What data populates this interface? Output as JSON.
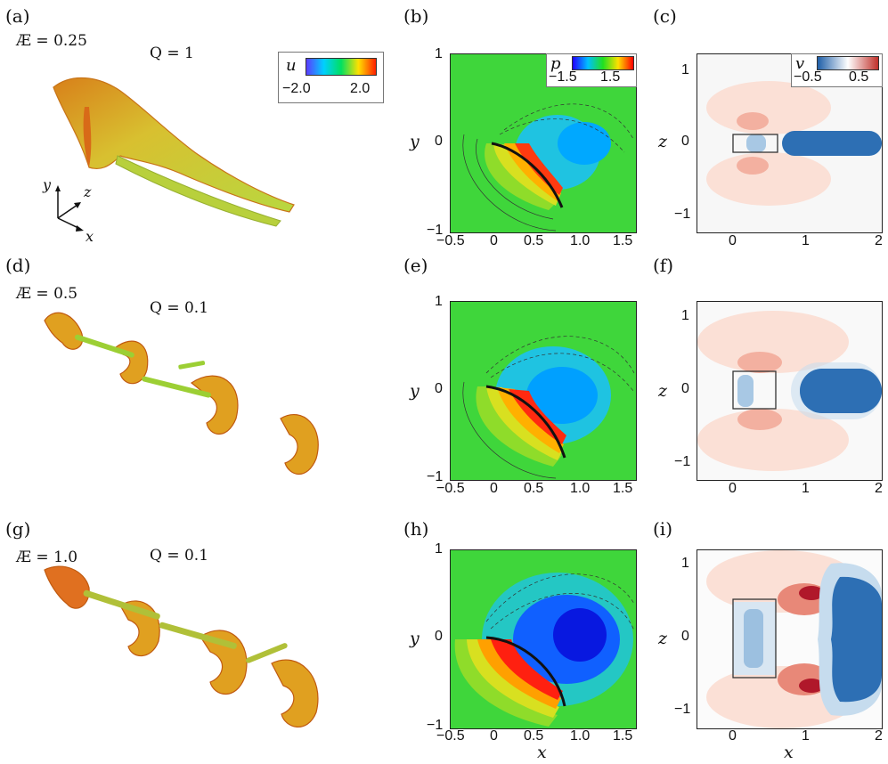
{
  "panels": {
    "a": {
      "label": "(a)",
      "ar": "Æ = 0.25",
      "q": "Q = 1"
    },
    "b": {
      "label": "(b)"
    },
    "c": {
      "label": "(c)"
    },
    "d": {
      "label": "(d)",
      "ar": "Æ = 0.5",
      "q": "Q = 0.1"
    },
    "e": {
      "label": "(e)"
    },
    "f": {
      "label": "(f)"
    },
    "g": {
      "label": "(g)",
      "ar": "Æ = 1.0",
      "q": "Q = 0.1"
    },
    "h": {
      "label": "(h)"
    },
    "i": {
      "label": "(i)"
    }
  },
  "colorbars": {
    "u": {
      "symbol": "u",
      "min": "−2.0",
      "max": "2.0"
    },
    "p": {
      "symbol": "p",
      "min": "−1.5",
      "max": "1.5"
    },
    "v": {
      "symbol": "v",
      "min": "−0.5",
      "max": "0.5"
    }
  },
  "axes": {
    "pressure": {
      "ylabel": "y",
      "xlabel": "x",
      "xticks": [
        "−0.5",
        "0",
        "0.5",
        "1.0",
        "1.5"
      ],
      "yticks": [
        "1",
        "0",
        "−1"
      ]
    },
    "velocity": {
      "ylabel": "z",
      "xlabel": "x",
      "xticks": [
        "0",
        "1",
        "2"
      ],
      "yticks": [
        "1",
        "0",
        "−1"
      ]
    }
  },
  "triad": {
    "y": "y",
    "z": "z",
    "x": "x"
  },
  "colors": {
    "u_gradient": [
      "#5a3cff",
      "#00d0ff",
      "#00e060",
      "#ffe000",
      "#ff2000"
    ],
    "p_gradient": [
      "#2000ff",
      "#00c0ff",
      "#20e020",
      "#ffe000",
      "#ff0000"
    ],
    "v_gradient": [
      "#1f5fa8",
      "#ffffff",
      "#c0302a"
    ],
    "plate": "#111111",
    "vortex_body": "#e0a020",
    "vortex_edge": "#c05a10"
  }
}
